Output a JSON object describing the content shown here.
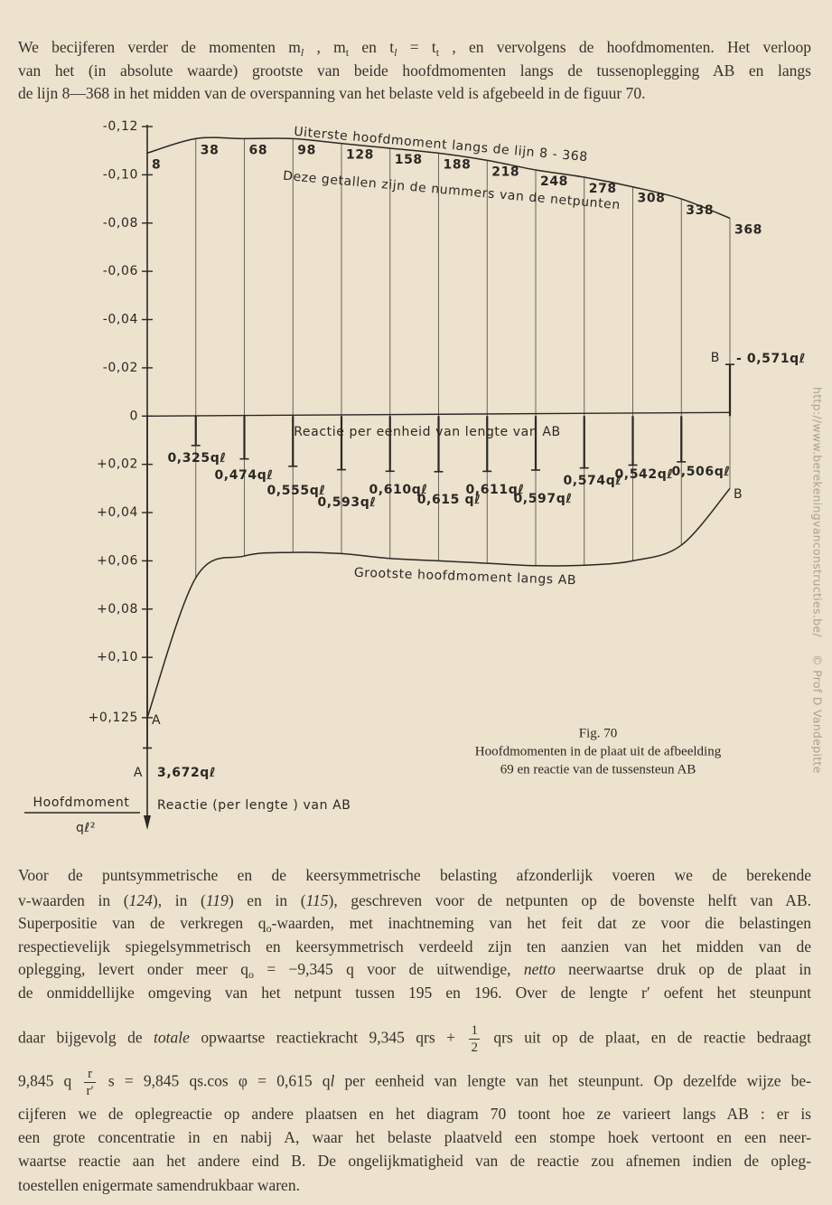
{
  "top_text": {
    "lines": [
      [
        "We becijferen verder de momenten m",
        "l",
        " , m",
        "t",
        " en t",
        "l",
        " = t",
        "t",
        " , en vervolgens de hoofdmomenten. Het verloop"
      ],
      [
        "van het (in absolute waarde) grootste van beide hoofdmomenten langs de tussenoplegging AB en langs"
      ],
      [
        "de lijn 8—368 in het midden van de overspanning van het belaste veld is afgebeeld in de figuur 70."
      ]
    ]
  },
  "chart_data": {
    "type": "line",
    "categories": [
      "8",
      "38",
      "68",
      "98",
      "128",
      "158",
      "188",
      "218",
      "248",
      "278",
      "308",
      "338",
      "368"
    ],
    "series": [
      {
        "name": "Uiterste hoofdmoment langs de lijn 8 - 368",
        "color": "#2b2824",
        "values": [
          -0.109,
          -0.115,
          -0.115,
          -0.115,
          -0.113,
          -0.111,
          -0.109,
          -0.106,
          -0.102,
          -0.099,
          -0.095,
          -0.09,
          -0.082
        ]
      },
      {
        "name": "Grootste hoofdmoment langs AB",
        "color": "#2b2824",
        "values": [
          0.125,
          0.067,
          0.058,
          0.0565,
          0.057,
          0.059,
          0.06,
          0.061,
          0.062,
          0.0618,
          0.06,
          0.0535,
          0.03
        ]
      }
    ],
    "reaction": {
      "name": "Reactie per eenheid van lengte van AB",
      "values": [
        3.672,
        0.325,
        0.474,
        0.555,
        0.593,
        0.61,
        0.615,
        0.611,
        0.597,
        0.574,
        0.542,
        0.506,
        -0.571
      ],
      "value_labels": [
        "3,672qℓ",
        "0,325qℓ",
        "0,474qℓ",
        "0,555qℓ",
        "0,593qℓ",
        "0,610qℓ",
        "0,615 qℓ",
        "0,611qℓ",
        "0,597qℓ",
        "0,574qℓ",
        "0,542qℓ",
        "0,506qℓ",
        "- 0,571qℓ"
      ]
    },
    "annotation": "Deze getallen zijn de nummers van de netpunten",
    "point_labels": [
      "A",
      "A",
      "B",
      "B"
    ],
    "ylim": [
      -0.12,
      0.17
    ],
    "yticks": [
      {
        "value": -0.12,
        "label": "-0,12"
      },
      {
        "value": -0.1,
        "label": "-0,10"
      },
      {
        "value": -0.08,
        "label": "-0,08"
      },
      {
        "value": -0.06,
        "label": "-0,06"
      },
      {
        "value": -0.04,
        "label": "-0,04"
      },
      {
        "value": -0.02,
        "label": "-0,02"
      },
      0,
      {
        "value": 0.02,
        "label": "+0,02"
      },
      {
        "value": 0.04,
        "label": "+0,04"
      },
      {
        "value": 0.06,
        "label": "+0,06"
      },
      {
        "value": 0.08,
        "label": "+0,08"
      },
      {
        "value": 0.1,
        "label": "+0,10"
      },
      {
        "value": 0.125,
        "label": "+0,125"
      }
    ],
    "ylabel": "Hoofdmoment",
    "ylabel_denominator": "qℓ²",
    "xlabel": "Reactie (per lengte ) van AB"
  },
  "caption": [
    "Fig. 70",
    "Hoofdmomenten in de plaat uit de afbeelding",
    "69 en reactie van de tussensteun AB"
  ],
  "body_text": {
    "lines": [
      [
        "Voor de puntsymmetrische en de keersymmetrische belasting afzonderlijk voeren we de berekende"
      ],
      [
        "v-waarden in (",
        "124",
        "), in (",
        "119",
        ") en in (",
        "115",
        "), geschreven voor de netpunten op de bovenste helft van AB."
      ],
      [
        "Superpositie van de verkregen q",
        "o",
        "-waarden, met inachtneming van het feit dat ze voor die belastingen"
      ],
      [
        "respectievelijk spiegelsymmetrisch en keersymmetrisch verdeeld zijn ten aanzien van het midden van de"
      ],
      [
        "oplegging, levert onder meer q",
        "o",
        " = −9,345 q voor de uitwendige, ",
        "netto",
        " neerwaartse druk op de plaat in"
      ],
      [
        "de onmiddellijke omgeving van het netpunt tussen 195 en 196. Over de lengte r′ oefent het steunpunt"
      ],
      [
        "daar bijgevolg de ",
        "totale",
        " opwaartse reactiekracht 9,345 qrs + ",
        [
          "1",
          "2"
        ],
        " qrs  uit op de plaat, en de reactie bedraagt"
      ],
      [
        "9,845 q ",
        [
          "r",
          "r′"
        ],
        " s  = 9,845 qs.cos φ = 0,615 q",
        "l",
        " per eenheid van lengte van het steunpunt. Op dezelfde wijze be-"
      ],
      [
        "cijferen we de oplegreactie op andere plaatsen en het diagram 70 toont hoe ze varieert langs AB :  er is"
      ],
      [
        "een grote concentratie in en nabij A, waar het belaste plaatveld een stompe hoek vertoont en een neer-"
      ],
      [
        "waartse reactie aan het andere eind B. De ongelijkmatigheid van de reactie zou afnemen indien de opleg-"
      ],
      [
        "toestellen enigermate samendrukbaar waren."
      ]
    ]
  },
  "watermark": [
    "http://www.berekeningvanconstructies.be/",
    "© Prof D Vandepitte"
  ]
}
